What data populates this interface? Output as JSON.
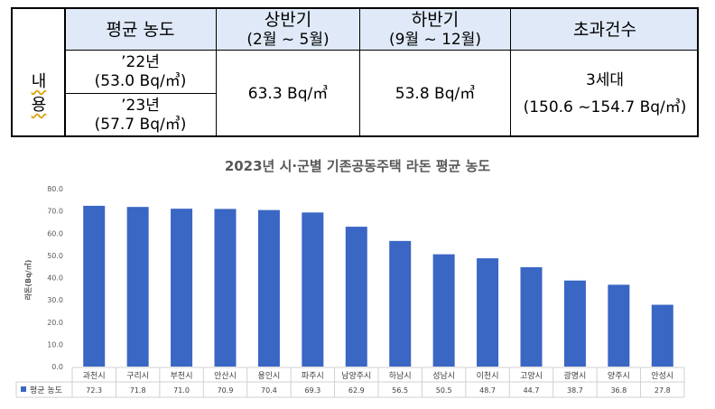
{
  "summary_table": {
    "row_header": [
      "내",
      "용"
    ],
    "headers": {
      "avg": "평균 농도",
      "h1_title": "상반기",
      "h1_period": "(2월 ~ 5월)",
      "h2_title": "하반기",
      "h2_period": "(9월 ~ 12월)",
      "exceed": "초과건수"
    },
    "avg_22_year": "’22년",
    "avg_22_value": "(53.0 Bq/㎥)",
    "avg_23_year": "’23년",
    "avg_23_value": "(57.7 Bq/㎥)",
    "h1_value": "63.3 Bq/㎥",
    "h2_value": "53.8 Bq/㎥",
    "exceed_count": "3세대",
    "exceed_range": "(150.6 ~154.7 Bq/㎥)"
  },
  "chart_data": {
    "type": "bar",
    "title": "2023년 시·군별 기존공동주택 라돈 평균 농도",
    "ylabel": "라돈(Bq/㎥)",
    "xlabel": "",
    "ylim": [
      0,
      80
    ],
    "yticks": [
      "0.0",
      "10.0",
      "20.0",
      "30.0",
      "40.0",
      "50.0",
      "60.0",
      "70.0",
      "80.0"
    ],
    "categories": [
      "과천시",
      "구리시",
      "부천시",
      "안산시",
      "용인시",
      "파주시",
      "남양주시",
      "하남시",
      "성남시",
      "이천시",
      "고양시",
      "광명시",
      "양주시",
      "안성시"
    ],
    "series": [
      {
        "name": "평균 농도",
        "values": [
          72.3,
          71.8,
          71.0,
          70.9,
          70.4,
          69.3,
          62.9,
          56.5,
          50.5,
          48.7,
          44.7,
          38.7,
          36.8,
          27.8
        ],
        "color": "#3a66c4"
      }
    ],
    "value_labels": [
      "72.3",
      "71.8",
      "71.0",
      "70.9",
      "70.4",
      "69.3",
      "62.9",
      "56.5",
      "50.5",
      "48.7",
      "44.7",
      "38.7",
      "36.8",
      "27.8"
    ],
    "grid": false,
    "legend": "bottom-left data table"
  }
}
